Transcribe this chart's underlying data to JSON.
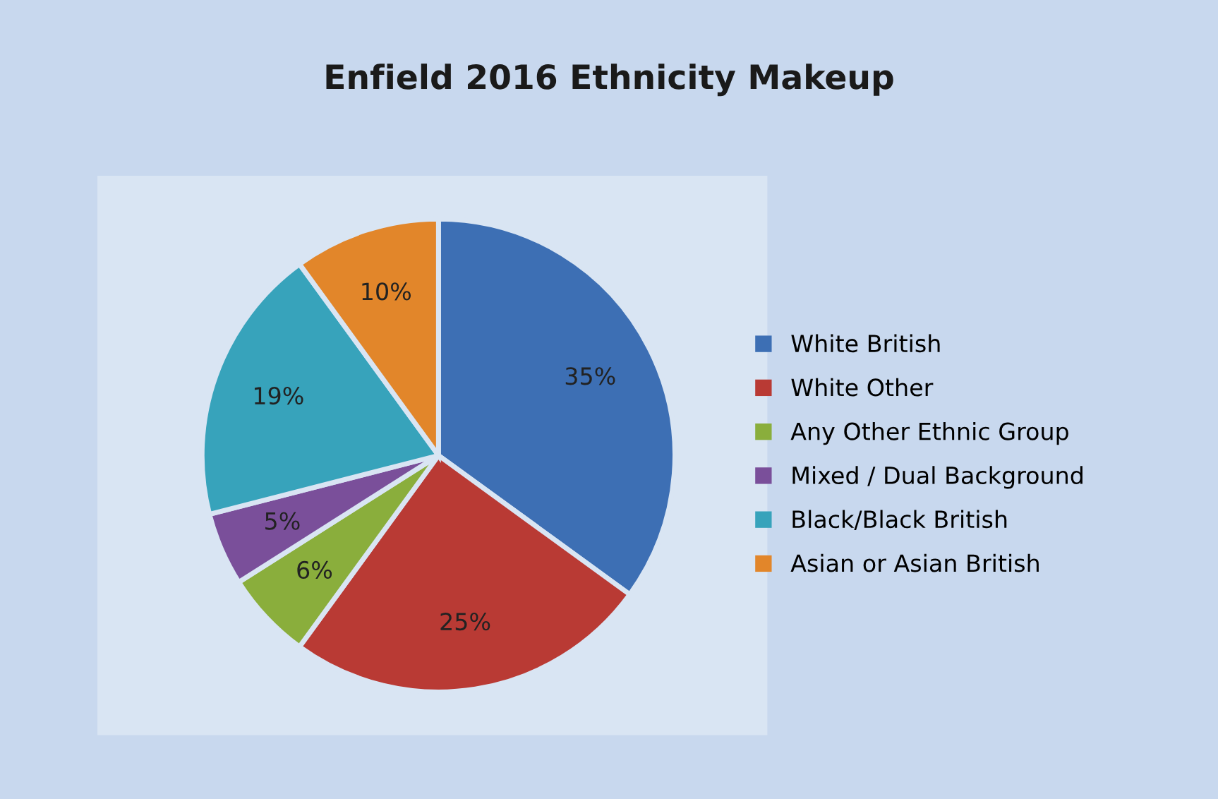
{
  "chart_data": {
    "type": "pie",
    "title": "Enfield 2016 Ethnicity Makeup",
    "categories": [
      "White British",
      "White Other",
      "Any Other Ethnic Group",
      "Mixed / Dual Background",
      "Black/Black British",
      "Asian or Asian British"
    ],
    "values": [
      35,
      25,
      6,
      5,
      19,
      10
    ],
    "value_labels": [
      "35%",
      "25%",
      "6%",
      "5%",
      "19%",
      "10%"
    ],
    "colors": [
      "#3d6fb4",
      "#b93a34",
      "#8aae3c",
      "#7a4f9a",
      "#37a3bb",
      "#e2862a"
    ],
    "legend": "right"
  }
}
